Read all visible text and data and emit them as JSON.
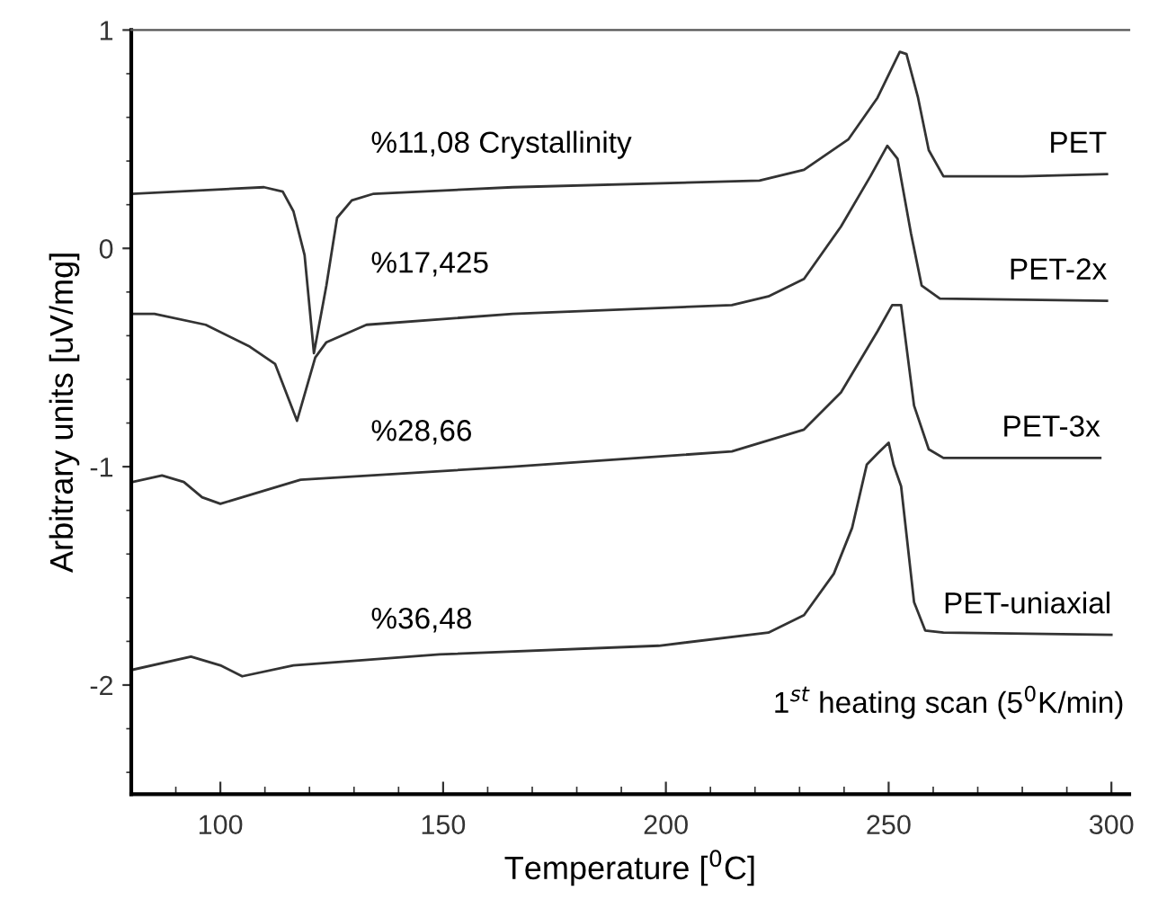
{
  "chart_data": {
    "type": "line",
    "xlabel": "Temperature [$^{0}$C]",
    "ylabel": "Arbitrary units [uV/mg]",
    "xlim": [
      80,
      304
    ],
    "ylim": [
      -2.5,
      1
    ],
    "xticks": [
      100,
      150,
      200,
      250,
      300
    ],
    "yticks": [
      -2,
      -1,
      0,
      1
    ],
    "grid": false,
    "legend": false,
    "series": [
      {
        "name": "PET",
        "color": "#333333",
        "x": [
          80.3,
          109.8,
          114,
          116.4,
          118.9,
          121,
          123.8,
          126.2,
          129.5,
          134.4,
          165.6,
          221,
          231,
          241,
          247.5,
          252.5,
          254,
          256.6,
          259,
          262.3,
          280,
          299
        ],
        "values": [
          0.25,
          0.28,
          0.26,
          0.17,
          -0.03,
          -0.48,
          -0.17,
          0.14,
          0.22,
          0.25,
          0.28,
          0.31,
          0.36,
          0.5,
          0.69,
          0.9,
          0.89,
          0.69,
          0.45,
          0.33,
          0.33,
          0.34
        ]
      },
      {
        "name": "PET-2x",
        "color": "#333333",
        "x": [
          80.3,
          85.2,
          96.7,
          106.6,
          112.3,
          117.2,
          121.3,
          123.8,
          132.8,
          165.6,
          214.8,
          223,
          231,
          239.3,
          245.9,
          249.7,
          252,
          255,
          257.4,
          261.5,
          299
        ],
        "values": [
          -0.3,
          -0.3,
          -0.35,
          -0.45,
          -0.53,
          -0.79,
          -0.5,
          -0.43,
          -0.35,
          -0.3,
          -0.26,
          -0.22,
          -0.14,
          0.1,
          0.33,
          0.47,
          0.41,
          0.07,
          -0.17,
          -0.23,
          -0.24
        ]
      },
      {
        "name": "PET-3x",
        "color": "#333333",
        "x": [
          80.3,
          86.9,
          91.8,
          95.9,
          100,
          104.9,
          118,
          165.6,
          214.8,
          231,
          239.3,
          247.5,
          250.8,
          252.8,
          255.7,
          259,
          262.3,
          297.5
        ],
        "values": [
          -1.07,
          -1.04,
          -1.07,
          -1.14,
          -1.17,
          -1.14,
          -1.06,
          -1.0,
          -0.93,
          -0.83,
          -0.66,
          -0.38,
          -0.26,
          -0.26,
          -0.72,
          -0.92,
          -0.96,
          -0.96
        ]
      },
      {
        "name": "PET-uniaxial",
        "color": "#333333",
        "x": [
          80.3,
          93.4,
          100,
          104.9,
          116.4,
          149.2,
          198.4,
          223,
          231,
          237.7,
          241.8,
          245.1,
          247.5,
          250,
          251.1,
          252.8,
          255.7,
          258.2,
          262.3,
          300
        ],
        "values": [
          -1.93,
          -1.87,
          -1.91,
          -1.96,
          -1.91,
          -1.86,
          -1.82,
          -1.76,
          -1.68,
          -1.49,
          -1.28,
          -0.99,
          -0.94,
          -0.89,
          -0.99,
          -1.09,
          -1.62,
          -1.75,
          -1.76,
          -1.77
        ]
      }
    ],
    "annotations": [
      "%11,08 Crystallinity",
      "%17,425",
      "%28,66",
      "%36,48",
      "1$^{st}$ heating scan (5$^{0}$K/min)"
    ]
  }
}
